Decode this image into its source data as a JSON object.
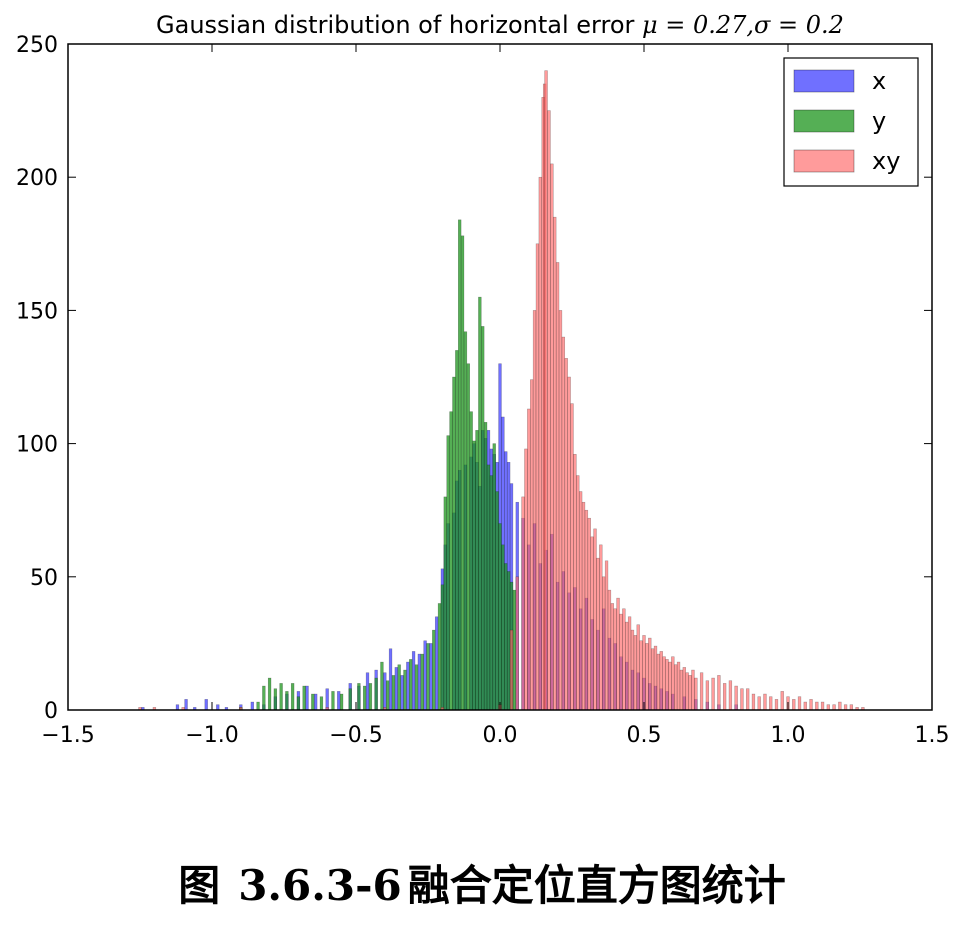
{
  "chart_data": {
    "type": "bar",
    "title_text": "Gaussian distribution of horizontal error ",
    "title_math": "μ = 0.27,σ = 0.2",
    "xlabel": "",
    "ylabel": "",
    "xlim": [
      -1.5,
      1.5
    ],
    "ylim": [
      0,
      250
    ],
    "xticks": [
      "−1.5",
      "−1.0",
      "−0.5",
      "0.0",
      "0.5",
      "1.0",
      "1.5"
    ],
    "xtick_values": [
      -1.5,
      -1.0,
      -0.5,
      0.0,
      0.5,
      1.0,
      1.5
    ],
    "yticks": [
      "0",
      "50",
      "100",
      "150",
      "200",
      "250"
    ],
    "ytick_values": [
      0,
      50,
      100,
      150,
      200,
      250
    ],
    "grid": false,
    "legend_position": "top-right",
    "series": [
      {
        "name": "x",
        "color": "#3333ff",
        "opacity": 0.7,
        "points": [
          [
            -1.24,
            1
          ],
          [
            -1.12,
            2
          ],
          [
            -1.09,
            4
          ],
          [
            -1.06,
            1
          ],
          [
            -1.02,
            4
          ],
          [
            -0.98,
            2
          ],
          [
            -0.95,
            1
          ],
          [
            -0.9,
            2
          ],
          [
            -0.86,
            3
          ],
          [
            -0.82,
            2
          ],
          [
            -0.78,
            5
          ],
          [
            -0.74,
            6
          ],
          [
            -0.7,
            7
          ],
          [
            -0.67,
            9
          ],
          [
            -0.64,
            6
          ],
          [
            -0.6,
            8
          ],
          [
            -0.56,
            7
          ],
          [
            -0.52,
            10
          ],
          [
            -0.49,
            9
          ],
          [
            -0.46,
            14
          ],
          [
            -0.43,
            15
          ],
          [
            -0.4,
            14
          ],
          [
            -0.38,
            23
          ],
          [
            -0.36,
            16
          ],
          [
            -0.34,
            13
          ],
          [
            -0.32,
            18
          ],
          [
            -0.3,
            22
          ],
          [
            -0.28,
            21
          ],
          [
            -0.26,
            26
          ],
          [
            -0.24,
            25
          ],
          [
            -0.22,
            35
          ],
          [
            -0.2,
            53
          ],
          [
            -0.19,
            62
          ],
          [
            -0.18,
            70
          ],
          [
            -0.16,
            74
          ],
          [
            -0.15,
            86
          ],
          [
            -0.14,
            90
          ],
          [
            -0.12,
            92
          ],
          [
            -0.1,
            95
          ],
          [
            -0.09,
            100
          ],
          [
            -0.08,
            93
          ],
          [
            -0.07,
            84
          ],
          [
            -0.06,
            105
          ],
          [
            -0.05,
            102
          ],
          [
            -0.04,
            105
          ],
          [
            -0.03,
            98
          ],
          [
            -0.02,
            96
          ],
          [
            -0.01,
            93
          ],
          [
            0.0,
            130
          ],
          [
            0.01,
            110
          ],
          [
            0.02,
            97
          ],
          [
            0.03,
            93
          ],
          [
            0.04,
            85
          ],
          [
            0.06,
            78
          ],
          [
            0.08,
            72
          ],
          [
            0.1,
            62
          ],
          [
            0.12,
            70
          ],
          [
            0.14,
            55
          ],
          [
            0.16,
            60
          ],
          [
            0.18,
            66
          ],
          [
            0.2,
            48
          ],
          [
            0.22,
            52
          ],
          [
            0.24,
            44
          ],
          [
            0.26,
            46
          ],
          [
            0.28,
            38
          ],
          [
            0.3,
            42
          ],
          [
            0.32,
            34
          ],
          [
            0.34,
            30
          ],
          [
            0.36,
            38
          ],
          [
            0.38,
            27
          ],
          [
            0.4,
            25
          ],
          [
            0.42,
            20
          ],
          [
            0.44,
            18
          ],
          [
            0.46,
            15
          ],
          [
            0.48,
            14
          ],
          [
            0.5,
            12
          ],
          [
            0.52,
            10
          ],
          [
            0.54,
            9
          ],
          [
            0.56,
            8
          ],
          [
            0.58,
            7
          ],
          [
            0.6,
            6
          ],
          [
            0.64,
            5
          ],
          [
            0.68,
            4
          ],
          [
            0.72,
            3
          ],
          [
            0.76,
            2
          ],
          [
            0.82,
            2
          ]
        ]
      },
      {
        "name": "y",
        "color": "#1c941c",
        "opacity": 0.75,
        "points": [
          [
            -0.9,
            1
          ],
          [
            -0.84,
            3
          ],
          [
            -0.82,
            9
          ],
          [
            -0.8,
            12
          ],
          [
            -0.78,
            8
          ],
          [
            -0.76,
            10
          ],
          [
            -0.74,
            7
          ],
          [
            -0.72,
            10
          ],
          [
            -0.7,
            5
          ],
          [
            -0.68,
            9
          ],
          [
            -0.65,
            6
          ],
          [
            -0.62,
            5
          ],
          [
            -0.58,
            7
          ],
          [
            -0.55,
            6
          ],
          [
            -0.52,
            8
          ],
          [
            -0.49,
            10
          ],
          [
            -0.47,
            9
          ],
          [
            -0.45,
            10
          ],
          [
            -0.43,
            12
          ],
          [
            -0.41,
            18
          ],
          [
            -0.39,
            11
          ],
          [
            -0.37,
            13
          ],
          [
            -0.35,
            17
          ],
          [
            -0.33,
            15
          ],
          [
            -0.31,
            19
          ],
          [
            -0.29,
            17
          ],
          [
            -0.27,
            21
          ],
          [
            -0.25,
            25
          ],
          [
            -0.23,
            30
          ],
          [
            -0.21,
            40
          ],
          [
            -0.2,
            47
          ],
          [
            -0.19,
            80
          ],
          [
            -0.18,
            103
          ],
          [
            -0.17,
            112
          ],
          [
            -0.16,
            125
          ],
          [
            -0.15,
            135
          ],
          [
            -0.14,
            184
          ],
          [
            -0.13,
            178
          ],
          [
            -0.12,
            142
          ],
          [
            -0.11,
            130
          ],
          [
            -0.1,
            112
          ],
          [
            -0.09,
            101
          ],
          [
            -0.08,
            105
          ],
          [
            -0.07,
            155
          ],
          [
            -0.06,
            144
          ],
          [
            -0.05,
            108
          ],
          [
            -0.04,
            92
          ],
          [
            -0.03,
            88
          ],
          [
            -0.02,
            100
          ],
          [
            -0.01,
            82
          ],
          [
            0.0,
            70
          ],
          [
            0.01,
            62
          ],
          [
            0.02,
            55
          ],
          [
            0.03,
            52
          ],
          [
            0.04,
            48
          ],
          [
            0.05,
            45
          ]
        ]
      },
      {
        "name": "xy",
        "color": "#ff6666",
        "opacity": 0.65,
        "points": [
          [
            -1.25,
            1
          ],
          [
            -1.2,
            1
          ],
          [
            -1.1,
            1
          ],
          [
            -0.9,
            1
          ],
          [
            -0.6,
            1
          ],
          [
            -0.4,
            1
          ],
          [
            -0.2,
            1
          ],
          [
            0.0,
            2
          ],
          [
            0.04,
            30
          ],
          [
            0.06,
            50
          ],
          [
            0.08,
            80
          ],
          [
            0.09,
            98
          ],
          [
            0.1,
            113
          ],
          [
            0.11,
            124
          ],
          [
            0.12,
            150
          ],
          [
            0.13,
            175
          ],
          [
            0.14,
            200
          ],
          [
            0.15,
            230
          ],
          [
            0.155,
            235
          ],
          [
            0.16,
            240
          ],
          [
            0.17,
            225
          ],
          [
            0.18,
            205
          ],
          [
            0.19,
            185
          ],
          [
            0.2,
            168
          ],
          [
            0.21,
            150
          ],
          [
            0.22,
            140
          ],
          [
            0.23,
            132
          ],
          [
            0.24,
            125
          ],
          [
            0.25,
            115
          ],
          [
            0.26,
            96
          ],
          [
            0.27,
            88
          ],
          [
            0.28,
            82
          ],
          [
            0.29,
            78
          ],
          [
            0.3,
            75
          ],
          [
            0.31,
            72
          ],
          [
            0.32,
            65
          ],
          [
            0.33,
            68
          ],
          [
            0.34,
            57
          ],
          [
            0.35,
            62
          ],
          [
            0.36,
            50
          ],
          [
            0.37,
            56
          ],
          [
            0.38,
            45
          ],
          [
            0.39,
            40
          ],
          [
            0.4,
            38
          ],
          [
            0.41,
            42
          ],
          [
            0.42,
            36
          ],
          [
            0.43,
            38
          ],
          [
            0.44,
            33
          ],
          [
            0.45,
            35
          ],
          [
            0.46,
            30
          ],
          [
            0.47,
            28
          ],
          [
            0.48,
            32
          ],
          [
            0.49,
            26
          ],
          [
            0.5,
            28
          ],
          [
            0.51,
            25
          ],
          [
            0.52,
            27
          ],
          [
            0.53,
            23
          ],
          [
            0.54,
            24
          ],
          [
            0.55,
            21
          ],
          [
            0.56,
            22
          ],
          [
            0.57,
            20
          ],
          [
            0.58,
            19
          ],
          [
            0.59,
            18
          ],
          [
            0.6,
            20
          ],
          [
            0.61,
            17
          ],
          [
            0.62,
            18
          ],
          [
            0.63,
            15
          ],
          [
            0.64,
            16
          ],
          [
            0.65,
            14
          ],
          [
            0.66,
            13
          ],
          [
            0.67,
            15
          ],
          [
            0.68,
            12
          ],
          [
            0.7,
            14
          ],
          [
            0.72,
            11
          ],
          [
            0.74,
            12
          ],
          [
            0.76,
            13
          ],
          [
            0.78,
            10
          ],
          [
            0.8,
            11
          ],
          [
            0.82,
            9
          ],
          [
            0.84,
            8
          ],
          [
            0.86,
            8
          ],
          [
            0.88,
            6
          ],
          [
            0.9,
            5
          ],
          [
            0.92,
            6
          ],
          [
            0.94,
            5
          ],
          [
            0.96,
            4
          ],
          [
            0.98,
            7
          ],
          [
            1.0,
            5
          ],
          [
            1.02,
            4
          ],
          [
            1.04,
            5
          ],
          [
            1.06,
            3
          ],
          [
            1.08,
            4
          ],
          [
            1.1,
            3
          ],
          [
            1.12,
            3
          ],
          [
            1.14,
            2
          ],
          [
            1.16,
            2
          ],
          [
            1.18,
            3
          ],
          [
            1.2,
            2
          ],
          [
            1.22,
            2
          ],
          [
            1.24,
            1
          ],
          [
            1.26,
            1
          ]
        ]
      }
    ]
  },
  "caption": {
    "prefix": "图",
    "number": "3.6.3-6",
    "text": "融合定位直方图统计"
  }
}
